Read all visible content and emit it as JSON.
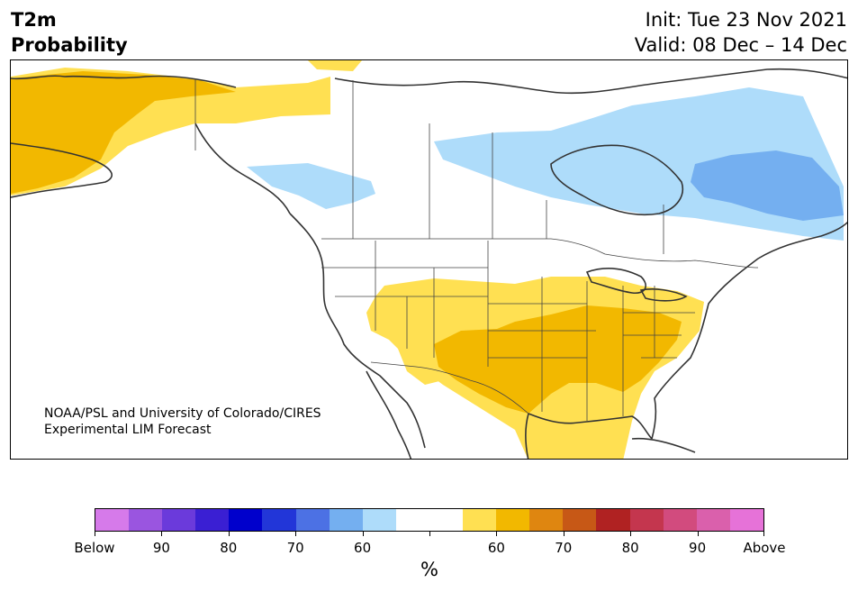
{
  "title": {
    "line1": "T2m",
    "line2": "Probability",
    "init": "Init: Tue 23 Nov 2021",
    "valid": "Valid: 08 Dec – 14 Dec"
  },
  "credit": {
    "line1": "NOAA/PSL and University of Colorado/CIRES",
    "line2": "Experimental LIM Forecast"
  },
  "colorbar": {
    "colors": [
      "#d67aea",
      "#9a55e0",
      "#6b3adb",
      "#3a1fd3",
      "#0000cc",
      "#2236d8",
      "#4c71e4",
      "#74aff0",
      "#aedcfa",
      "#ffffff",
      "#ffffff",
      "#ffe052",
      "#f2b800",
      "#df8610",
      "#c75816",
      "#b02222",
      "#c4364e",
      "#d24b7e",
      "#da60ac",
      "#e672d8"
    ],
    "tick_labels": [
      "Below",
      "90",
      "80",
      "70",
      "60",
      "",
      "60",
      "70",
      "80",
      "90",
      "Above"
    ],
    "unit": "%"
  },
  "map": {
    "categories": {
      "light_yellow": "#ffe052",
      "yellow": "#f2b800",
      "light_blue": "#aedcfa",
      "blue": "#74aff0"
    }
  }
}
